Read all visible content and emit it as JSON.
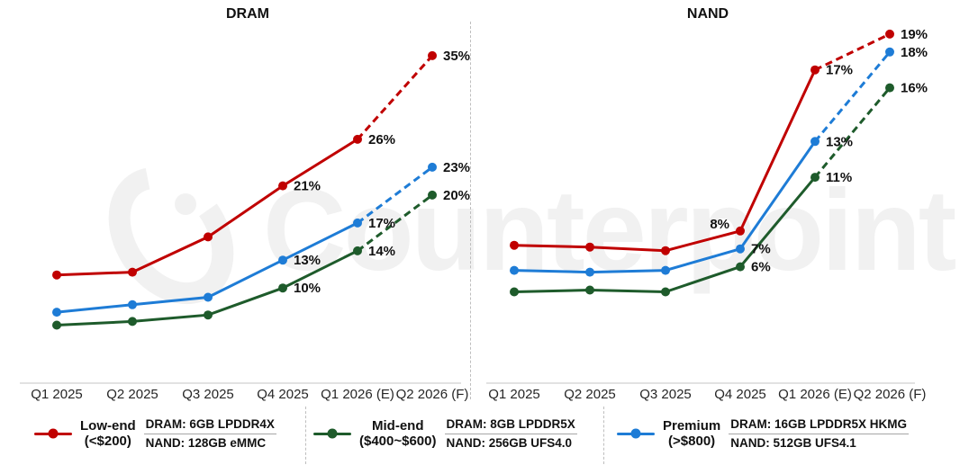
{
  "watermark": {
    "text": "Counterpoint",
    "logo": "counterpoint-c-logo"
  },
  "colors": {
    "low_end": "#C00000",
    "mid_end": "#1E5B2B",
    "premium": "#1E7CD6",
    "axis_line": "#D9D9D9",
    "divider": "#BEBEBE",
    "label_text": "#111111"
  },
  "chart_data": [
    {
      "type": "line",
      "title": "DRAM",
      "categories": [
        "Q1 2025",
        "Q2 2025",
        "Q3 2025",
        "Q4 2025",
        "Q1 2026 (E)",
        "Q2 2026 (F)"
      ],
      "value_suffix": "%",
      "ylim": [
        0,
        40
      ],
      "grid": false,
      "forecast_final_segment_dashed": true,
      "series": [
        {
          "key": "low-end",
          "name": "Low-end (<$200)",
          "color": "#C00000",
          "values": [
            11.4,
            11.7,
            15.5,
            21,
            26,
            35
          ],
          "labels": [
            "",
            "",
            "",
            "21%",
            "26%",
            "35%"
          ]
        },
        {
          "key": "premium",
          "name": "Premium (>$800)",
          "color": "#1E7CD6",
          "values": [
            7.4,
            8.2,
            9.0,
            13,
            17,
            23
          ],
          "labels": [
            "",
            "",
            "",
            "13%",
            "17%",
            "23%"
          ]
        },
        {
          "key": "mid-end",
          "name": "Mid-end ($400~$600)",
          "color": "#1E5B2B",
          "values": [
            6.0,
            6.4,
            7.1,
            10,
            14,
            20
          ],
          "labels": [
            "",
            "",
            "",
            "10%",
            "14%",
            "20%"
          ]
        }
      ]
    },
    {
      "type": "line",
      "title": "NAND",
      "categories": [
        "Q1 2025",
        "Q2 2025",
        "Q3 2025",
        "Q4 2025",
        "Q1 2026 (E)",
        "Q2 2026 (F)"
      ],
      "value_suffix": "%",
      "ylim": [
        0,
        21
      ],
      "grid": false,
      "forecast_final_segment_dashed": true,
      "series": [
        {
          "key": "low-end",
          "name": "Low-end (<$200)",
          "color": "#C00000",
          "values": [
            7.2,
            7.1,
            6.9,
            8,
            17,
            19
          ],
          "labels": [
            "",
            "",
            "",
            "8%",
            "17%",
            "19%"
          ],
          "label_overrides": {
            "3": {
              "dx": -12,
              "dy": -3,
              "anchor": "end"
            }
          }
        },
        {
          "key": "premium",
          "name": "Premium (>$800)",
          "color": "#1E7CD6",
          "values": [
            5.8,
            5.7,
            5.8,
            7,
            13,
            18
          ],
          "labels": [
            "",
            "",
            "",
            "7%",
            "13%",
            "18%"
          ]
        },
        {
          "key": "mid-end",
          "name": "Mid-end ($400~$600)",
          "color": "#1E5B2B",
          "values": [
            4.6,
            4.7,
            4.6,
            6,
            11,
            16
          ],
          "labels": [
            "",
            "",
            "",
            "6%",
            "11%",
            "16%"
          ]
        }
      ]
    }
  ],
  "legend": {
    "items": [
      {
        "key": "low-end",
        "name": "Low-end",
        "range": "(<$200)",
        "dram_spec": "DRAM: 6GB LPDDR4X",
        "nand_spec": "NAND: 128GB eMMC",
        "color": "#C00000"
      },
      {
        "key": "mid-end",
        "name": "Mid-end",
        "range": "($400~$600)",
        "dram_spec": "DRAM: 8GB LPDDR5X",
        "nand_spec": "NAND: 256GB UFS4.0",
        "color": "#1E5B2B"
      },
      {
        "key": "premium",
        "name": "Premium",
        "range": "(>$800)",
        "dram_spec": "DRAM: 16GB LPDDR5X HKMG",
        "nand_spec": "NAND: 512GB UFS4.1",
        "color": "#1E7CD6"
      }
    ]
  }
}
